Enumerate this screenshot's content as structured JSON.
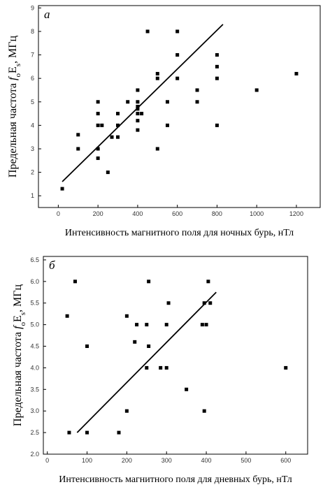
{
  "chart_data": [
    {
      "type": "scatter",
      "panel": "а",
      "xlabel": "Интенсивность магнитного поля для ночных бурь, нТл",
      "ylabel": [
        "Предельная частота ",
        "f",
        "o",
        "E",
        "s",
        ", МГц"
      ],
      "xlim": [
        -100,
        1320
      ],
      "ylim": [
        0.5,
        9.1
      ],
      "xticks": [
        0,
        200,
        400,
        600,
        800,
        1000,
        1200
      ],
      "yticks": [
        1,
        2,
        3,
        4,
        5,
        6,
        7,
        8,
        9
      ],
      "color": "#000000",
      "x": [
        20,
        100,
        100,
        200,
        200,
        200,
        200,
        200,
        220,
        250,
        270,
        300,
        300,
        300,
        350,
        400,
        400,
        400,
        400,
        400,
        400,
        400,
        420,
        450,
        500,
        500,
        500,
        550,
        550,
        600,
        600,
        600,
        700,
        700,
        800,
        800,
        800,
        800,
        1000,
        1200
      ],
      "y": [
        1.3,
        3.0,
        3.6,
        2.6,
        3.0,
        4.0,
        4.5,
        5.0,
        4.0,
        2.0,
        3.5,
        3.5,
        4.0,
        4.5,
        5.0,
        3.8,
        4.2,
        4.5,
        4.7,
        4.8,
        5.0,
        5.5,
        4.5,
        8.0,
        3.0,
        6.0,
        6.2,
        4.0,
        5.0,
        6.0,
        7.0,
        8.0,
        5.0,
        5.5,
        4.0,
        6.0,
        6.5,
        7.0,
        5.5,
        6.2
      ],
      "fit": {
        "x": [
          20,
          830
        ],
        "y": [
          1.6,
          8.3
        ]
      }
    },
    {
      "type": "scatter",
      "panel": "б",
      "xlabel": "Интенсивность магнитного поля для дневных бурь, нТл",
      "ylabel": [
        "Предельная частота ",
        "f",
        "o",
        "E",
        "s",
        ", МГц"
      ],
      "xlim": [
        -10,
        655
      ],
      "ylim": [
        2.0,
        6.58
      ],
      "xticks": [
        0,
        100,
        200,
        300,
        400,
        500,
        600
      ],
      "yticks": [
        {
          "value": 2,
          "label": "2.0"
        },
        2.5,
        {
          "value": 3,
          "label": "3.0"
        },
        3.5,
        {
          "value": 4,
          "label": "4.0"
        },
        4.5,
        {
          "value": 5,
          "label": "5.0"
        },
        5.5,
        {
          "value": 6,
          "label": "6.0"
        },
        6.5
      ],
      "color": "#000000",
      "x": [
        50,
        55,
        70,
        100,
        100,
        180,
        200,
        200,
        220,
        225,
        250,
        250,
        255,
        255,
        285,
        300,
        300,
        305,
        350,
        390,
        395,
        395,
        400,
        405,
        410,
        600
      ],
      "y": [
        5.2,
        2.5,
        6.0,
        4.5,
        2.5,
        2.5,
        3.0,
        5.2,
        4.6,
        5.0,
        4.0,
        5.0,
        6.0,
        4.5,
        4.0,
        4.0,
        5.0,
        5.5,
        3.5,
        5.0,
        3.0,
        5.5,
        5.0,
        6.0,
        5.5,
        4.0
      ],
      "fit": {
        "x": [
          75,
          425
        ],
        "y": [
          2.5,
          5.75
        ]
      }
    }
  ]
}
